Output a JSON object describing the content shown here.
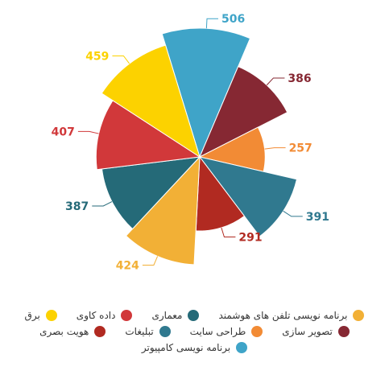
{
  "chart_data": {
    "type": "polar-area",
    "title": "",
    "start_angle_deg": -17,
    "radius_max": 506,
    "categories": [
      "برنامه نویسی کامپیوتر",
      "تصویر سازی",
      "طراحی سایت",
      "تبلیغات",
      "هویت بصری",
      "برنامه نویسی تلفن های هوشمند",
      "معماری",
      "داده کاوی",
      "برق"
    ],
    "values": [
      506,
      386,
      257,
      391,
      291,
      424,
      387,
      407,
      459
    ],
    "colors": [
      "#3fa4c8",
      "#862833",
      "#f28b35",
      "#30798f",
      "#b12a21",
      "#f2b036",
      "#256a78",
      "#d1383a",
      "#fcd200"
    ],
    "legend_position": "bottom",
    "legend_rows": [
      [
        {
          "label": "برنامه نویسی تلفن های هوشمند",
          "color": "#f2b036"
        },
        {
          "label": "معماری",
          "color": "#256a78"
        },
        {
          "label": "داده کاوی",
          "color": "#d1383a"
        },
        {
          "label": "برق",
          "color": "#fcd200"
        }
      ],
      [
        {
          "label": "تصویر سازی",
          "color": "#862833"
        },
        {
          "label": "طراحی سایت",
          "color": "#f28b35"
        },
        {
          "label": "تبلیغات",
          "color": "#30798f"
        },
        {
          "label": "هویت بصری",
          "color": "#b12a21"
        }
      ],
      [
        {
          "label": "برنامه نویسی کامپیوتر",
          "color": "#3fa4c8"
        }
      ]
    ]
  }
}
